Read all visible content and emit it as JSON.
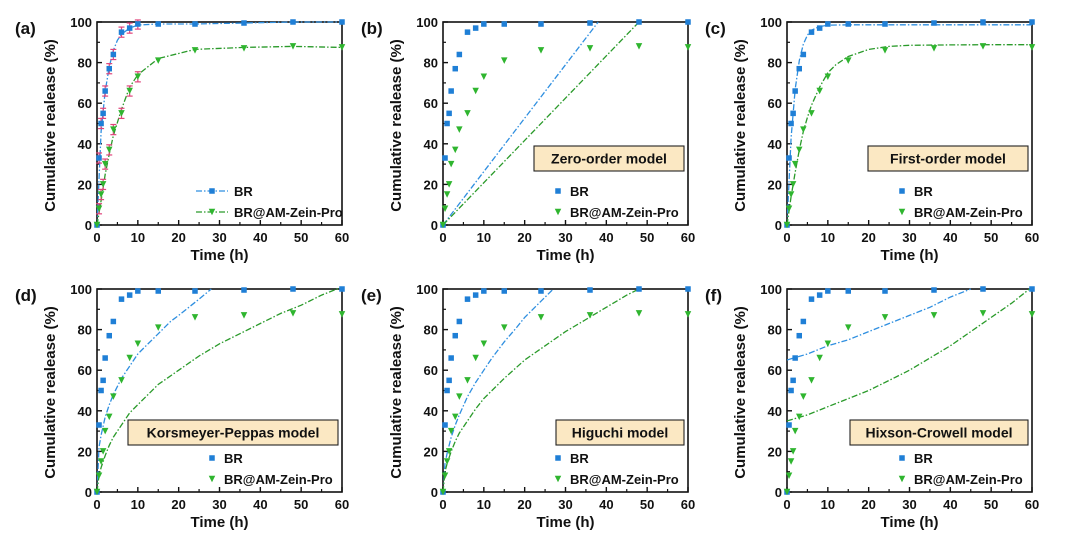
{
  "colors": {
    "br": "#1f7fd6",
    "br_fit": "#2f8fe0",
    "zein": "#2fb52f",
    "zein_fit": "#2a9a2a",
    "box_fill": "#fbe8c3",
    "error": "#e0457b"
  },
  "chart_data": [
    {
      "panel": "(a)",
      "type": "line",
      "model": "",
      "xlabel": "Time (h)",
      "ylabel": "Cumulative realease (%)",
      "xlim": [
        0,
        60
      ],
      "ylim": [
        0,
        100
      ],
      "xticks": [
        "0",
        "10",
        "20",
        "30",
        "40",
        "50",
        "60"
      ],
      "yticks": [
        "0",
        "20",
        "40",
        "60",
        "80",
        "100"
      ],
      "x": [
        0,
        0.5,
        1,
        1.5,
        2,
        3,
        4,
        6,
        8,
        10,
        15,
        24,
        36,
        48,
        60
      ],
      "series": [
        {
          "name": "BR",
          "marker": "square",
          "values": [
            0,
            33,
            50,
            55,
            66,
            77,
            84,
            95,
            97,
            99,
            99,
            99,
            99.5,
            100,
            100
          ]
        },
        {
          "name": "BR@AM-Zein-Pro",
          "marker": "triangle",
          "values": [
            0,
            8,
            15,
            20,
            30,
            37,
            47,
            55,
            66,
            73,
            81,
            86,
            87,
            88,
            87.5
          ]
        }
      ],
      "fits": [
        {
          "name": "BR",
          "x": [
            0,
            1,
            2,
            3,
            4,
            5,
            6,
            8,
            10,
            15,
            24,
            36,
            48,
            60
          ],
          "values": [
            0,
            46,
            66,
            78,
            86,
            91,
            94,
            97,
            98.5,
            99,
            99,
            99.5,
            100,
            100
          ]
        },
        {
          "name": "BR@AM-Zein-Pro",
          "x": [
            0,
            1,
            2,
            3,
            4,
            6,
            8,
            10,
            15,
            24,
            36,
            48,
            60
          ],
          "values": [
            0,
            12,
            25,
            35,
            44,
            57,
            68,
            74,
            82,
            86.5,
            87.5,
            88,
            87.5
          ]
        }
      ],
      "legend": [
        "BR",
        "BR@AM-Zein-Pro"
      ],
      "legend_position": "bottom-right"
    },
    {
      "panel": "(b)",
      "type": "scatter",
      "model": "Zero-order model",
      "xlabel": "Time (h)",
      "ylabel": "Cumulative realease (%)",
      "xlim": [
        0,
        60
      ],
      "ylim": [
        0,
        100
      ],
      "xticks": [
        "0",
        "10",
        "20",
        "30",
        "40",
        "50",
        "60"
      ],
      "yticks": [
        "0",
        "20",
        "40",
        "60",
        "80",
        "100"
      ],
      "x": [
        0,
        0.5,
        1,
        1.5,
        2,
        3,
        4,
        6,
        8,
        10,
        15,
        24,
        36,
        48,
        60
      ],
      "series": [
        {
          "name": "BR",
          "marker": "square",
          "values": [
            0,
            33,
            50,
            55,
            66,
            77,
            84,
            95,
            97,
            99,
            99,
            99,
            99.5,
            100,
            100
          ]
        },
        {
          "name": "BR@AM-Zein-Pro",
          "marker": "triangle",
          "values": [
            0,
            8,
            15,
            20,
            30,
            37,
            47,
            55,
            66,
            73,
            81,
            86,
            87,
            88,
            87.5
          ]
        }
      ],
      "fits": [
        {
          "name": "BR",
          "x": [
            0,
            38
          ],
          "values": [
            0,
            100
          ]
        },
        {
          "name": "BR@AM-Zein-Pro",
          "x": [
            0,
            48
          ],
          "values": [
            0,
            100
          ]
        }
      ],
      "legend": [
        "BR",
        "BR@AM-Zein-Pro"
      ],
      "legend_position": "bottom-right"
    },
    {
      "panel": "(c)",
      "type": "scatter",
      "model": "First-order model",
      "xlabel": "Time (h)",
      "ylabel": "Cumulative realease (%)",
      "xlim": [
        0,
        60
      ],
      "ylim": [
        0,
        100
      ],
      "xticks": [
        "0",
        "10",
        "20",
        "30",
        "40",
        "50",
        "60"
      ],
      "yticks": [
        "0",
        "20",
        "40",
        "60",
        "80",
        "100"
      ],
      "x": [
        0,
        0.5,
        1,
        1.5,
        2,
        3,
        4,
        6,
        8,
        10,
        15,
        24,
        36,
        48,
        60
      ],
      "series": [
        {
          "name": "BR",
          "marker": "square",
          "values": [
            0,
            33,
            50,
            55,
            66,
            77,
            84,
            95,
            97,
            99,
            99,
            99,
            99.5,
            100,
            100
          ]
        },
        {
          "name": "BR@AM-Zein-Pro",
          "marker": "triangle",
          "values": [
            0,
            8,
            15,
            20,
            30,
            37,
            47,
            55,
            66,
            73,
            81,
            86,
            87,
            88,
            87.5
          ]
        }
      ],
      "fits": [
        {
          "name": "BR",
          "x": [
            0,
            1,
            2,
            3,
            4,
            5,
            6,
            8,
            10,
            15,
            20,
            30,
            40,
            50,
            60
          ],
          "values": [
            0,
            43,
            67,
            81,
            89,
            93.5,
            96,
            97.8,
            98.4,
            98.6,
            98.6,
            98.6,
            98.6,
            98.6,
            98.6
          ]
        },
        {
          "name": "BR@AM-Zein-Pro",
          "x": [
            0,
            1,
            2,
            3,
            4,
            5,
            6,
            8,
            10,
            12,
            15,
            20,
            25,
            30,
            40,
            50,
            60
          ],
          "values": [
            0,
            14,
            26,
            37,
            46,
            53,
            59,
            68,
            75,
            79,
            83,
            86.5,
            88,
            88.5,
            88.7,
            88.8,
            88.8
          ]
        }
      ],
      "legend": [
        "BR",
        "BR@AM-Zein-Pro"
      ],
      "legend_position": "bottom-right"
    },
    {
      "panel": "(d)",
      "type": "scatter",
      "model": "Korsmeyer-Peppas model",
      "xlabel": "Time (h)",
      "ylabel": "Cumulative realease (%)",
      "xlim": [
        0,
        60
      ],
      "ylim": [
        0,
        100
      ],
      "xticks": [
        "0",
        "10",
        "20",
        "30",
        "40",
        "50",
        "60"
      ],
      "yticks": [
        "0",
        "20",
        "40",
        "60",
        "80",
        "100"
      ],
      "x": [
        0,
        0.5,
        1,
        1.5,
        2,
        3,
        4,
        6,
        8,
        10,
        15,
        24,
        36,
        48,
        60
      ],
      "series": [
        {
          "name": "BR",
          "marker": "square",
          "values": [
            0,
            33,
            50,
            55,
            66,
            77,
            84,
            95,
            97,
            99,
            99,
            99,
            99.5,
            100,
            100
          ]
        },
        {
          "name": "BR@AM-Zein-Pro",
          "marker": "triangle",
          "values": [
            0,
            8,
            15,
            20,
            30,
            37,
            47,
            55,
            66,
            73,
            81,
            86,
            87,
            88,
            87.5
          ]
        }
      ],
      "fits": [
        {
          "name": "BR",
          "x": [
            0,
            0.5,
            1,
            2,
            3,
            4,
            6,
            8,
            10,
            12,
            15,
            18,
            20,
            25,
            28
          ],
          "values": [
            0,
            22,
            28,
            37,
            43,
            48,
            56,
            62,
            68,
            72,
            78,
            84,
            87,
            95,
            100
          ]
        },
        {
          "name": "BR@AM-Zein-Pro",
          "x": [
            0,
            0.5,
            1,
            2,
            3,
            4,
            6,
            8,
            10,
            15,
            20,
            25,
            30,
            35,
            40,
            45,
            50,
            55,
            60
          ],
          "values": [
            0,
            8,
            12,
            18,
            23,
            27,
            33,
            39,
            43,
            53,
            60,
            67,
            73,
            78,
            83,
            88,
            92,
            97,
            101
          ]
        }
      ],
      "legend": [
        "BR",
        "BR@AM-Zein-Pro"
      ],
      "legend_position": "bottom-right"
    },
    {
      "panel": "(e)",
      "type": "scatter",
      "model": "Higuchi model",
      "xlabel": "Time (h)",
      "ylabel": "Cumulative realease (%)",
      "xlim": [
        0,
        60
      ],
      "ylim": [
        0,
        100
      ],
      "xticks": [
        "0",
        "10",
        "20",
        "30",
        "40",
        "50",
        "60"
      ],
      "yticks": [
        "0",
        "20",
        "40",
        "60",
        "80",
        "100"
      ],
      "x": [
        0,
        0.5,
        1,
        1.5,
        2,
        3,
        4,
        6,
        8,
        10,
        15,
        24,
        36,
        48,
        60
      ],
      "series": [
        {
          "name": "BR",
          "marker": "square",
          "values": [
            0,
            33,
            50,
            55,
            66,
            77,
            84,
            95,
            97,
            99,
            99,
            99,
            99.5,
            100,
            100
          ]
        },
        {
          "name": "BR@AM-Zein-Pro",
          "marker": "triangle",
          "values": [
            0,
            8,
            15,
            20,
            30,
            37,
            47,
            55,
            66,
            73,
            81,
            86,
            87,
            88,
            87.5
          ]
        }
      ],
      "fits": [
        {
          "name": "BR",
          "x": [
            0,
            0.5,
            1,
            2,
            3,
            4,
            6,
            8,
            10,
            12,
            15,
            18,
            20,
            24,
            27
          ],
          "values": [
            0,
            14,
            19,
            27,
            33,
            38,
            47,
            54,
            60,
            66,
            74,
            81,
            86,
            94,
            100
          ]
        },
        {
          "name": "BR@AM-Zein-Pro",
          "x": [
            0,
            0.5,
            1,
            2,
            3,
            4,
            6,
            8,
            10,
            15,
            20,
            25,
            30,
            35,
            40,
            45,
            48
          ],
          "values": [
            0,
            10,
            14,
            20,
            25,
            29,
            35,
            41,
            46,
            56,
            65,
            72,
            79,
            85,
            91,
            97,
            100
          ]
        }
      ],
      "legend": [
        "BR",
        "BR@AM-Zein-Pro"
      ],
      "legend_position": "bottom-right"
    },
    {
      "panel": "(f)",
      "type": "scatter",
      "model": "Hixson-Crowell model",
      "xlabel": "Time (h)",
      "ylabel": "Cumulative realease (%)",
      "xlim": [
        0,
        60
      ],
      "ylim": [
        0,
        100
      ],
      "xticks": [
        "0",
        "10",
        "20",
        "30",
        "40",
        "50",
        "60"
      ],
      "yticks": [
        "0",
        "20",
        "40",
        "60",
        "80",
        "100"
      ],
      "x": [
        0,
        0.5,
        1,
        1.5,
        2,
        3,
        4,
        6,
        8,
        10,
        15,
        24,
        36,
        48,
        60
      ],
      "series": [
        {
          "name": "BR",
          "marker": "square",
          "values": [
            0,
            33,
            50,
            55,
            66,
            77,
            84,
            95,
            97,
            99,
            99,
            99,
            99.5,
            100,
            100
          ]
        },
        {
          "name": "BR@AM-Zein-Pro",
          "marker": "triangle",
          "values": [
            0,
            8,
            15,
            20,
            30,
            37,
            47,
            55,
            66,
            73,
            81,
            86,
            87,
            88,
            87.5
          ]
        }
      ],
      "fits": [
        {
          "name": "BR",
          "x": [
            0,
            5,
            10,
            15,
            20,
            25,
            30,
            35,
            40,
            45
          ],
          "values": [
            65,
            68,
            72,
            75,
            79,
            83,
            87,
            91,
            96,
            100
          ]
        },
        {
          "name": "BR@AM-Zein-Pro",
          "x": [
            0,
            5,
            10,
            15,
            20,
            25,
            30,
            35,
            40,
            45,
            50,
            55,
            60
          ],
          "values": [
            35,
            38,
            42,
            46,
            50,
            55,
            60,
            66,
            72,
            79,
            86,
            93,
            101
          ]
        }
      ],
      "legend": [
        "BR",
        "BR@AM-Zein-Pro"
      ],
      "legend_position": "bottom-right"
    }
  ]
}
